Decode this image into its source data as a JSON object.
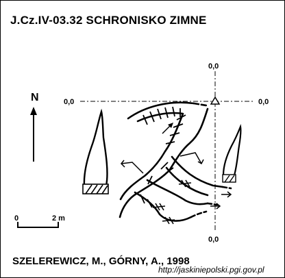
{
  "title": "J.Cz.IV-03.32  SCHRONISKO ZIMNE",
  "north_label": "N",
  "scale_bar": {
    "start_label": "0",
    "end_label": "2 m",
    "length_m": 2
  },
  "datum_label": "0,0",
  "datum_marker_icon": "triangle-datum-icon",
  "authors": "SZELEREWICZ, M., GÓRNY, A., 1998",
  "source_url": "http://jaskiniepolski.pgi.gov.pl"
}
